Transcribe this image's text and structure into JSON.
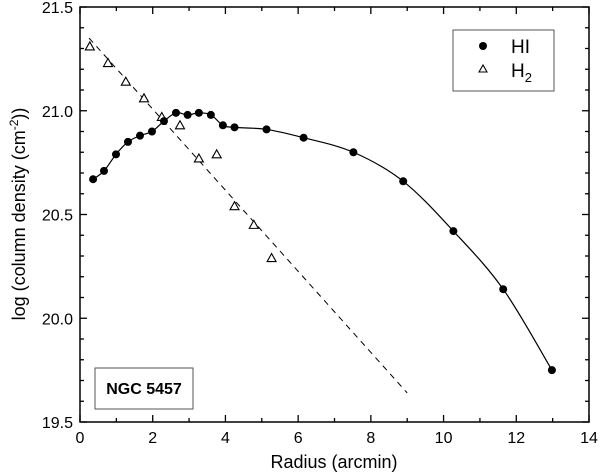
{
  "chart_data": {
    "type": "scatter",
    "title": "",
    "xlabel": "Radius (arcmin)",
    "ylabel": "log (column density (cm⁻²))",
    "ylabel_parts": {
      "main": "log (column density (cm",
      "sup": "-2",
      "end": "))"
    },
    "xlim": [
      0,
      14
    ],
    "ylim": [
      19.5,
      21.5
    ],
    "xticks": [
      0,
      2,
      4,
      6,
      8,
      10,
      12,
      14
    ],
    "xtick_labels": [
      "0",
      "2",
      "4",
      "6",
      "8",
      "10",
      "12",
      "14"
    ],
    "yticks": [
      19.5,
      20.0,
      20.5,
      21.0,
      21.5
    ],
    "ytick_labels": [
      "19.5",
      "20.0",
      "20.5",
      "21.0",
      "21.5"
    ],
    "grid": false,
    "legend_position": "upper right",
    "series": [
      {
        "name": "HI",
        "marker": "filled-circle",
        "line": "solid-smooth",
        "x": [
          0.36,
          0.66,
          0.99,
          1.32,
          1.65,
          1.98,
          2.31,
          2.64,
          2.96,
          3.27,
          3.6,
          3.93,
          4.25,
          5.13,
          6.15,
          7.52,
          8.89,
          10.27,
          11.64,
          12.98
        ],
        "y": [
          20.67,
          20.71,
          20.79,
          20.85,
          20.88,
          20.9,
          20.95,
          20.99,
          20.98,
          20.99,
          20.98,
          20.93,
          20.92,
          20.91,
          20.87,
          20.8,
          20.66,
          20.42,
          20.14,
          19.75
        ]
      },
      {
        "name": "H2",
        "label_main": "H",
        "label_sub": "2",
        "marker": "open-triangle",
        "line": "none",
        "x": [
          0.27,
          0.77,
          1.26,
          1.76,
          2.25,
          2.75,
          3.27,
          3.76,
          4.25,
          4.78,
          5.27
        ],
        "y": [
          21.31,
          21.23,
          21.14,
          21.06,
          20.97,
          20.93,
          20.77,
          20.79,
          20.54,
          20.45,
          20.29
        ]
      }
    ],
    "fit_lines": [
      {
        "name": "H2 linear fit",
        "style": "dashed",
        "x": [
          0.25,
          9.0
        ],
        "y": [
          21.35,
          19.64
        ]
      }
    ],
    "annotations": [
      {
        "text": "NGC 5457",
        "position": "lower left",
        "boxed": true,
        "bold": true
      }
    ]
  }
}
